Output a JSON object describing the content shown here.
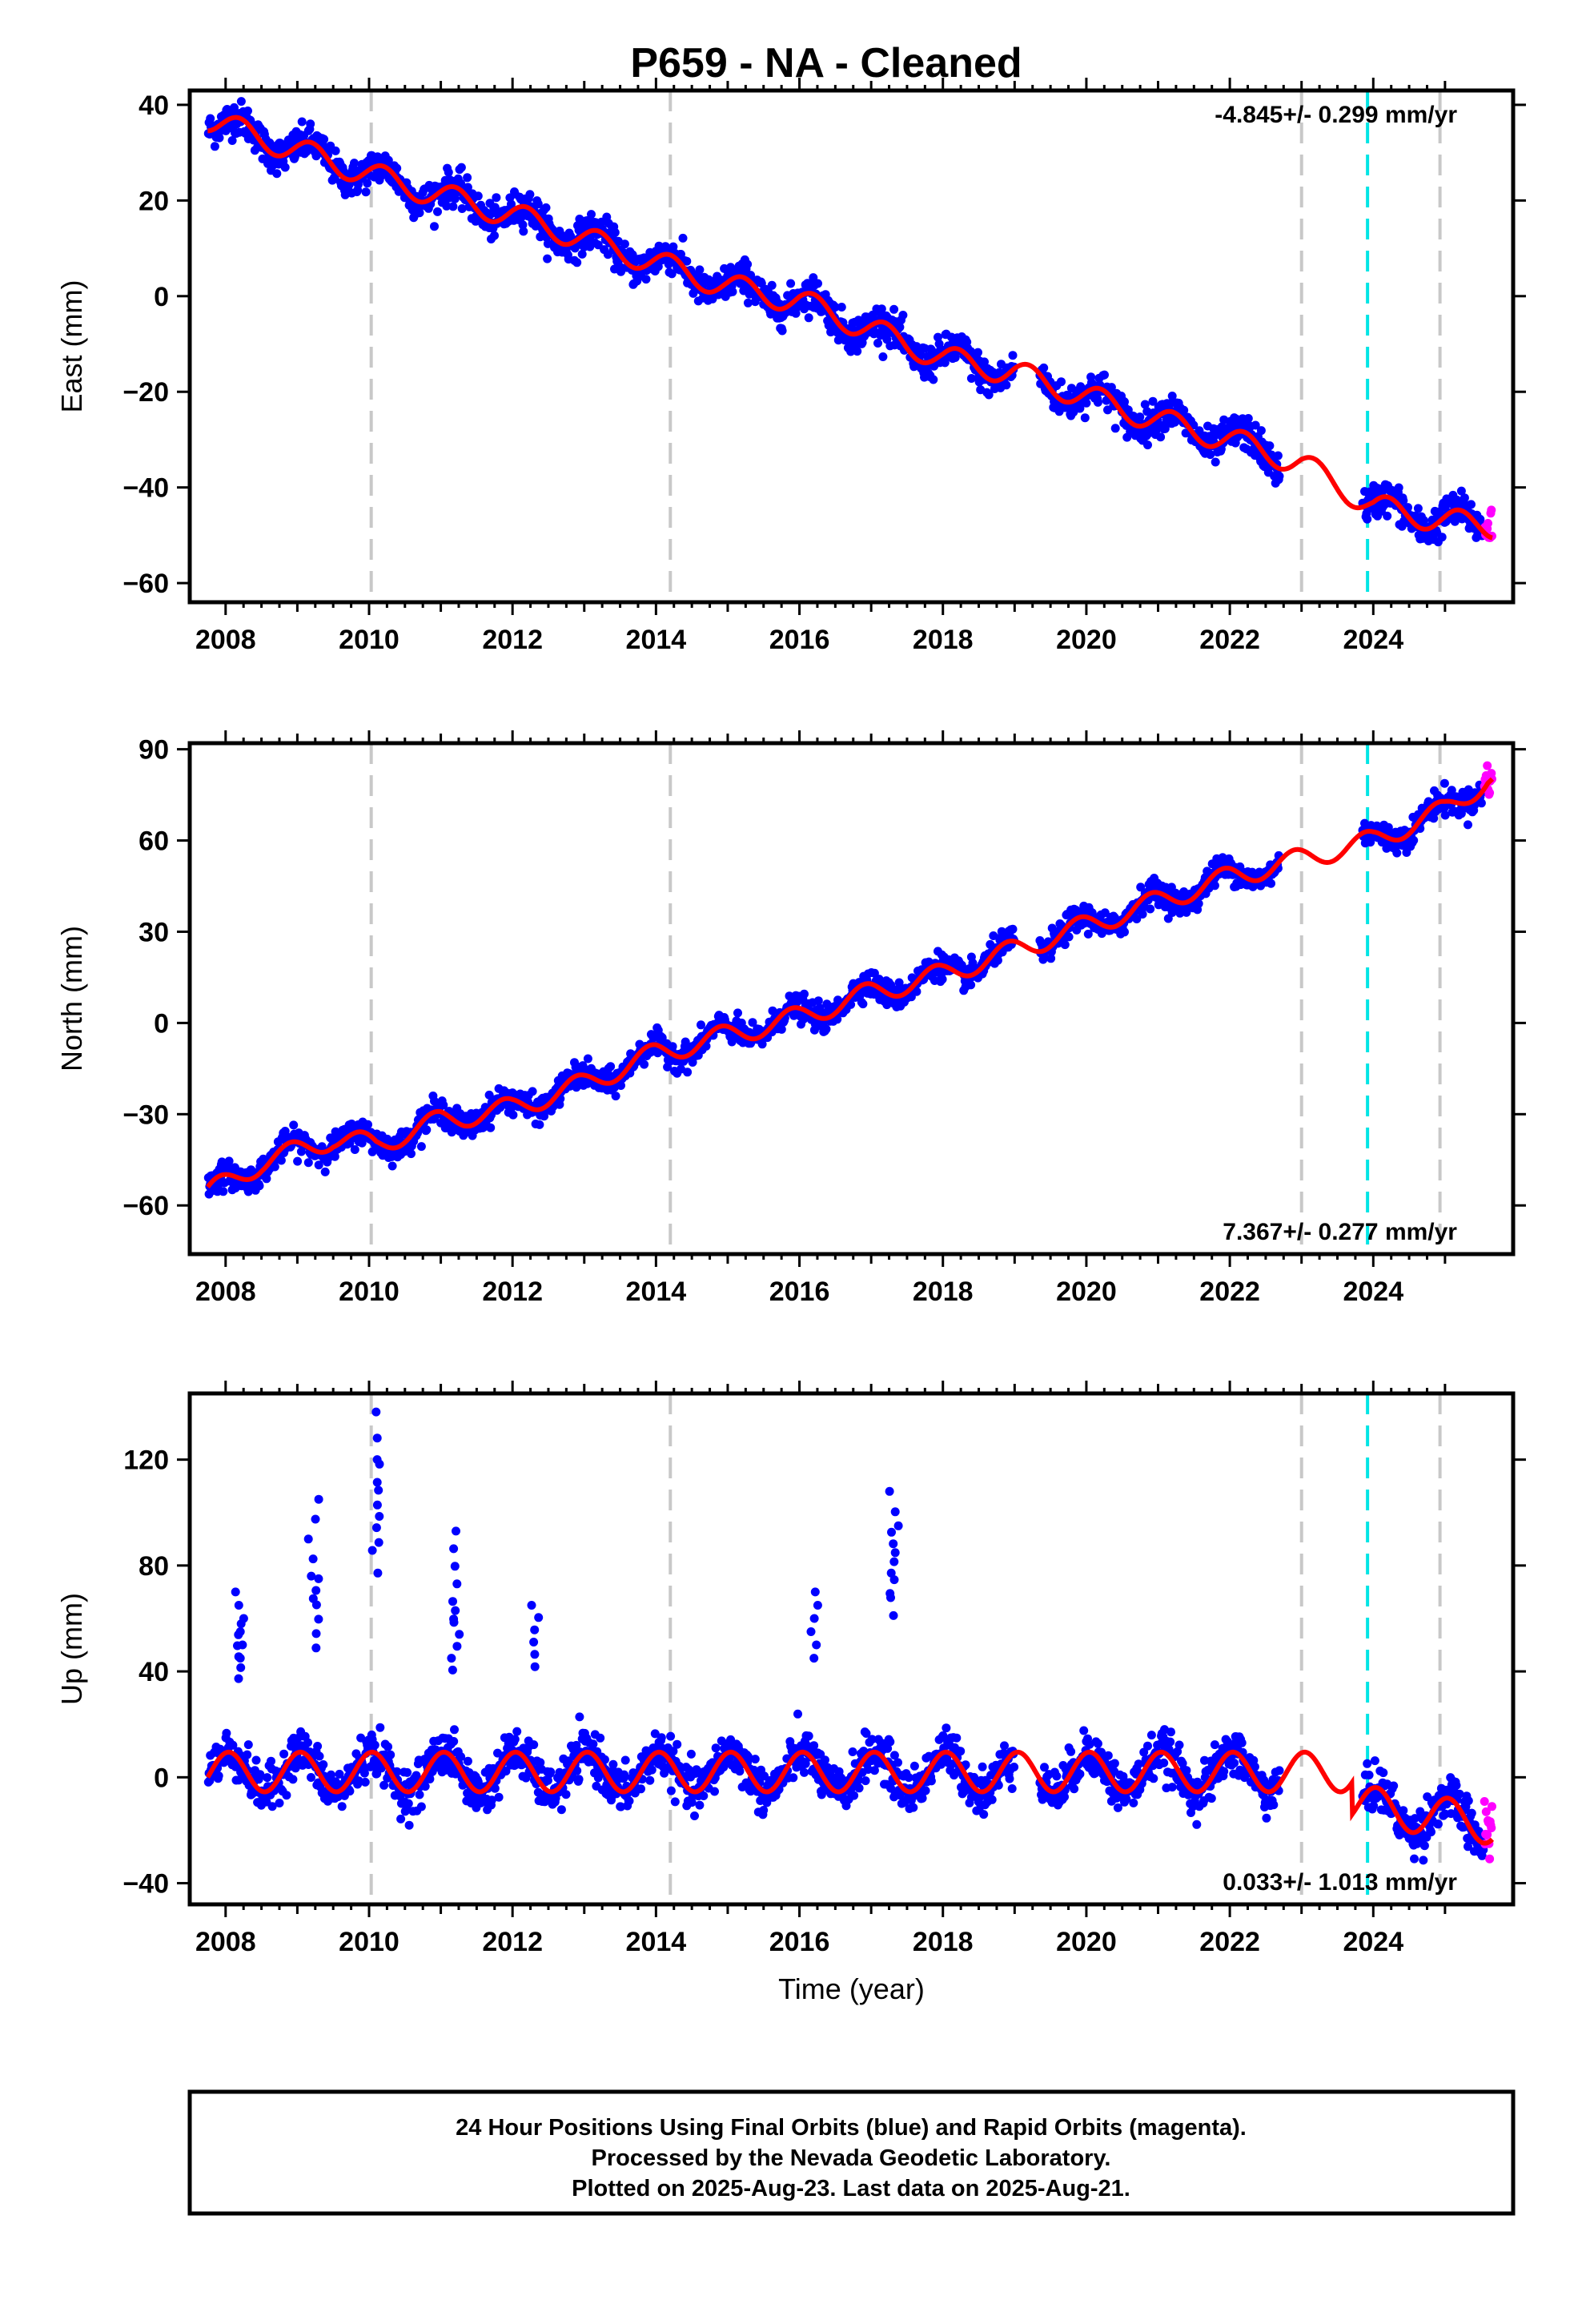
{
  "title": "P659  - NA - Cleaned",
  "colors": {
    "final_points": "#0000ff",
    "rapid_points": "#ff00ff",
    "model": "#ff0000",
    "event_lines": "#c8c8c8",
    "equipment_line": "#00e5e5"
  },
  "x_label": "Time (year)",
  "x_ticks": [
    "2008",
    "2010",
    "2012",
    "2014",
    "2016",
    "2018",
    "2020",
    "2022",
    "2024"
  ],
  "event_lines": [
    2010.03,
    2014.2,
    2023.0,
    2024.93
  ],
  "equipment_line": 2023.92,
  "footer": {
    "line1": "24 Hour Positions Using Final Orbits (blue) and Rapid Orbits (magenta).",
    "line2": "Processed by the Nevada Geodetic Laboratory.",
    "line3": "Plotted on 2025-Aug-23. Last data on 2025-Aug-21."
  },
  "chart_data": [
    {
      "type": "scatter",
      "ylabel": "East (mm)",
      "rate_text": "-4.845+/- 0.299 mm/yr",
      "xlim": [
        2007.5,
        2025.95
      ],
      "ylim": [
        -64,
        43
      ],
      "yticks": [
        "40",
        "20",
        "0",
        "-20",
        "-40",
        "-60"
      ],
      "rate_mm_per_yr": -4.845,
      "rate_uncertainty": 0.299,
      "series": [
        {
          "x": [
            2007.75,
            2008.5,
            2009.5,
            2010.1,
            2011.0,
            2012.0,
            2013.0,
            2014.0,
            2015.0,
            2016.0,
            2017.0,
            2018.0,
            2019.0,
            2020.0,
            2021.0,
            2022.0,
            2023.0,
            2024.0,
            2025.0,
            2025.6
          ],
          "y": [
            37,
            33,
            28,
            25,
            21,
            17,
            12,
            7,
            2,
            -1,
            -7,
            -13,
            -16,
            -21,
            -26,
            -30,
            -35,
            -44,
            -47,
            -48
          ]
        }
      ]
    },
    {
      "type": "scatter",
      "ylabel": "North (mm)",
      "rate_text": "7.367+/- 0.277 mm/yr",
      "xlim": [
        2007.5,
        2025.95
      ],
      "ylim": [
        -76,
        92
      ],
      "yticks": [
        "90",
        "60",
        "30",
        "0",
        "-30",
        "-60"
      ],
      "rate_mm_per_yr": 7.367,
      "rate_uncertainty": 0.277,
      "series": [
        {
          "x": [
            2007.75,
            2008.5,
            2009.5,
            2010.1,
            2011.0,
            2012.0,
            2013.0,
            2014.0,
            2015.0,
            2016.0,
            2017.0,
            2018.0,
            2019.0,
            2020.0,
            2021.0,
            2022.0,
            2023.0,
            2024.0,
            2025.0,
            2025.6
          ],
          "y": [
            -56,
            -46,
            -38,
            -40,
            -32,
            -28,
            -20,
            -10,
            -4,
            2,
            10,
            16,
            24,
            32,
            40,
            48,
            54,
            60,
            70,
            80
          ]
        }
      ]
    },
    {
      "type": "scatter",
      "ylabel": "Up (mm)",
      "xlabel": "Time (year)",
      "rate_text": "0.033+/- 1.013 mm/yr",
      "xlim": [
        2007.5,
        2025.95
      ],
      "ylim": [
        -48,
        145
      ],
      "yticks": [
        "120",
        "80",
        "40",
        "0",
        "-40"
      ],
      "rate_mm_per_yr": 0.033,
      "rate_uncertainty": 1.013,
      "outliers": [
        {
          "x": 2010.1,
          "y": 138
        },
        {
          "x": 2010.1,
          "y": 120
        },
        {
          "x": 2009.25,
          "y": 105
        },
        {
          "x": 2017.3,
          "y": 108
        },
        {
          "x": 2017.3,
          "y": 95
        },
        {
          "x": 2011.2,
          "y": 93
        },
        {
          "x": 2008.2,
          "y": 70
        },
        {
          "x": 2016.2,
          "y": 70
        },
        {
          "x": 2012.3,
          "y": 65
        },
        {
          "x": 2008.2,
          "y": 58
        },
        {
          "x": 2009.25,
          "y": 76
        },
        {
          "x": 2011.2,
          "y": 63
        }
      ]
    }
  ]
}
